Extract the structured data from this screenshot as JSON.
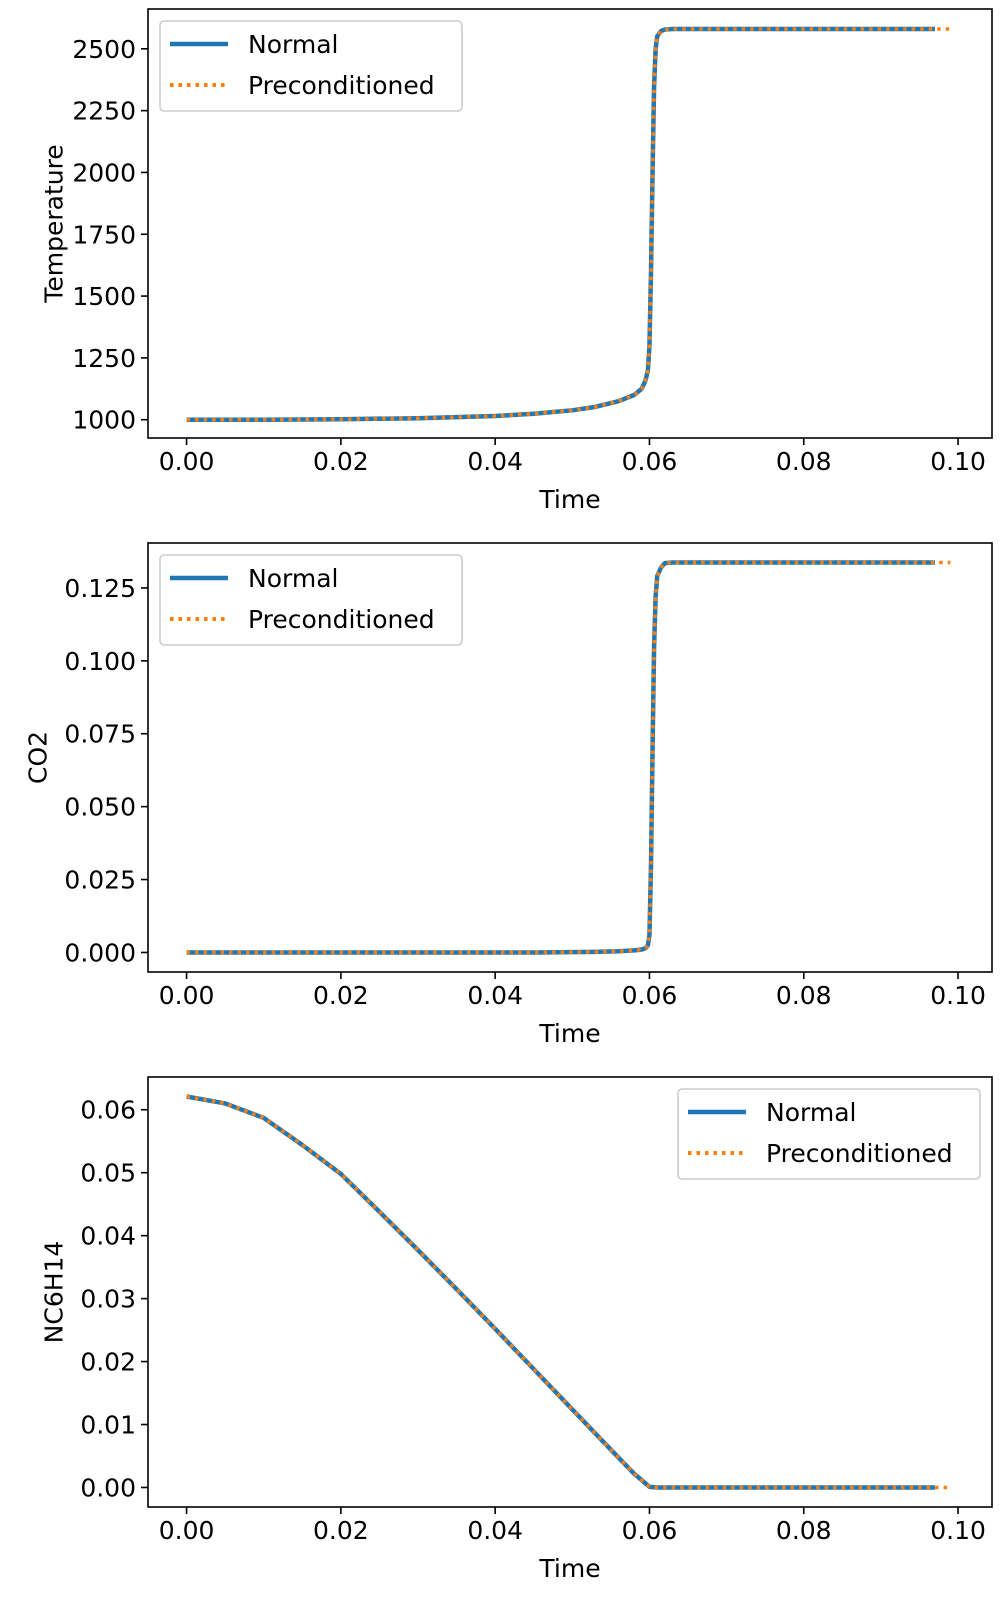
{
  "chart_data": [
    {
      "type": "line",
      "xlabel": "Time",
      "ylabel": "Temperature",
      "legend": "upper left",
      "xlim": [
        -0.005,
        0.1044
      ],
      "ylim": [
        926,
        2661
      ],
      "xticks": [
        {
          "value": 0,
          "label": "0.00"
        },
        0.02,
        0.04,
        0.06,
        0.08,
        {
          "value": 0.1,
          "label": "0.10"
        }
      ],
      "yticks": [
        1000,
        1250,
        1500,
        1750,
        2000,
        2250,
        2500
      ],
      "series": [
        {
          "name": "Normal",
          "color": "#1f77b4",
          "style": "solid",
          "x": [
            0,
            0.01,
            0.02,
            0.03,
            0.04,
            0.045,
            0.05,
            0.053,
            0.056,
            0.058,
            0.059,
            0.0595,
            0.0598,
            0.06,
            0.0602,
            0.0604,
            0.0606,
            0.0608,
            0.061,
            0.0615,
            0.062,
            0.063,
            0.065,
            0.07,
            0.08,
            0.09,
            0.097
          ],
          "values": [
            1000,
            1000,
            1002,
            1006,
            1015,
            1024,
            1038,
            1052,
            1075,
            1100,
            1125,
            1160,
            1200,
            1300,
            1600,
            2000,
            2350,
            2500,
            2550,
            2572,
            2578,
            2580,
            2580,
            2580,
            2580,
            2580,
            2580
          ]
        },
        {
          "name": "Preconditioned",
          "color": "#ff7f0e",
          "style": "dotted",
          "x": [
            0,
            0.01,
            0.02,
            0.03,
            0.04,
            0.045,
            0.05,
            0.053,
            0.056,
            0.058,
            0.059,
            0.0595,
            0.0598,
            0.06,
            0.0602,
            0.0604,
            0.0606,
            0.0608,
            0.061,
            0.0615,
            0.062,
            0.063,
            0.065,
            0.07,
            0.08,
            0.09,
            0.099
          ],
          "values": [
            1000,
            1000,
            1002,
            1006,
            1015,
            1024,
            1038,
            1052,
            1075,
            1100,
            1125,
            1160,
            1200,
            1300,
            1600,
            2000,
            2350,
            2500,
            2550,
            2572,
            2578,
            2580,
            2580,
            2580,
            2580,
            2580,
            2580
          ]
        }
      ]
    },
    {
      "type": "line",
      "xlabel": "Time",
      "ylabel": "CO2",
      "legend": "upper left",
      "xlim": [
        -0.005,
        0.1044
      ],
      "ylim": [
        -0.0067,
        0.1404
      ],
      "xticks": [
        {
          "value": 0,
          "label": "0.00"
        },
        0.02,
        0.04,
        0.06,
        0.08,
        {
          "value": 0.1,
          "label": "0.10"
        }
      ],
      "yticks": [
        {
          "value": 0,
          "label": "0.000"
        },
        0.025,
        {
          "value": 0.05,
          "label": "0.050"
        },
        0.075,
        {
          "value": 0.1,
          "label": "0.100"
        },
        0.125
      ],
      "series": [
        {
          "name": "Normal",
          "color": "#1f77b4",
          "style": "solid",
          "x": [
            0,
            0.01,
            0.02,
            0.03,
            0.04,
            0.045,
            0.05,
            0.053,
            0.056,
            0.058,
            0.059,
            0.0595,
            0.0598,
            0.06,
            0.0602,
            0.0604,
            0.0606,
            0.0608,
            0.061,
            0.0615,
            0.062,
            0.063,
            0.065,
            0.07,
            0.08,
            0.09,
            0.097
          ],
          "values": [
            0,
            0,
            0,
            0,
            0,
            0,
            0.0001,
            0.0002,
            0.0004,
            0.0007,
            0.001,
            0.0015,
            0.0025,
            0.006,
            0.03,
            0.07,
            0.105,
            0.122,
            0.129,
            0.132,
            0.1335,
            0.1337,
            0.1337,
            0.1337,
            0.1337,
            0.1337,
            0.1337
          ]
        },
        {
          "name": "Preconditioned",
          "color": "#ff7f0e",
          "style": "dotted",
          "x": [
            0,
            0.01,
            0.02,
            0.03,
            0.04,
            0.045,
            0.05,
            0.053,
            0.056,
            0.058,
            0.059,
            0.0595,
            0.0598,
            0.06,
            0.0602,
            0.0604,
            0.0606,
            0.0608,
            0.061,
            0.0615,
            0.062,
            0.063,
            0.065,
            0.07,
            0.08,
            0.09,
            0.099
          ],
          "values": [
            0,
            0,
            0,
            0,
            0,
            0,
            0.0001,
            0.0002,
            0.0004,
            0.0007,
            0.001,
            0.0015,
            0.0025,
            0.006,
            0.03,
            0.07,
            0.105,
            0.122,
            0.129,
            0.132,
            0.1335,
            0.1337,
            0.1337,
            0.1337,
            0.1337,
            0.1337,
            0.1337
          ]
        }
      ]
    },
    {
      "type": "line",
      "xlabel": "Time",
      "ylabel": "NC6H14",
      "legend": "upper right",
      "xlim": [
        -0.005,
        0.1044
      ],
      "ylim": [
        -0.0031,
        0.0652
      ],
      "xticks": [
        {
          "value": 0,
          "label": "0.00"
        },
        0.02,
        0.04,
        0.06,
        0.08,
        {
          "value": 0.1,
          "label": "0.10"
        }
      ],
      "yticks": [
        {
          "value": 0,
          "label": "0.00"
        },
        0.01,
        0.02,
        0.03,
        0.04,
        0.05,
        0.06
      ],
      "series": [
        {
          "name": "Normal",
          "color": "#1f77b4",
          "style": "solid",
          "x": [
            0,
            0.005,
            0.01,
            0.015,
            0.02,
            0.025,
            0.03,
            0.035,
            0.04,
            0.045,
            0.05,
            0.055,
            0.058,
            0.06,
            0.061,
            0.065,
            0.07,
            0.08,
            0.09,
            0.097
          ],
          "values": [
            0.0621,
            0.061,
            0.0587,
            0.0544,
            0.0498,
            0.0438,
            0.0377,
            0.0315,
            0.0252,
            0.0188,
            0.0124,
            0.006,
            0.0022,
            0.0001,
            0,
            0,
            0,
            0,
            0,
            0
          ]
        },
        {
          "name": "Preconditioned",
          "color": "#ff7f0e",
          "style": "dotted",
          "x": [
            0,
            0.005,
            0.01,
            0.015,
            0.02,
            0.025,
            0.03,
            0.035,
            0.04,
            0.045,
            0.05,
            0.055,
            0.058,
            0.06,
            0.061,
            0.065,
            0.07,
            0.08,
            0.09,
            0.099
          ],
          "values": [
            0.0621,
            0.061,
            0.0587,
            0.0544,
            0.0498,
            0.0438,
            0.0377,
            0.0315,
            0.0252,
            0.0188,
            0.0124,
            0.006,
            0.0022,
            0.0001,
            0,
            0,
            0,
            0,
            0,
            0
          ]
        }
      ]
    }
  ]
}
